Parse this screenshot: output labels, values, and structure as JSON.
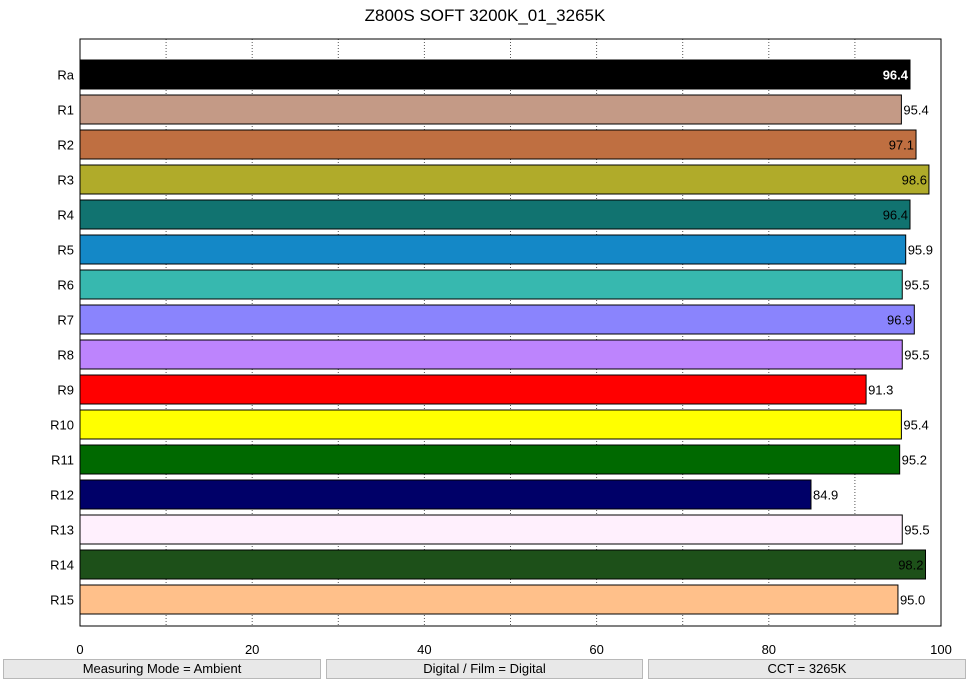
{
  "chart_data": {
    "type": "bar",
    "orientation": "horizontal",
    "title": "Z800S SOFT 3200K_01_3265K",
    "xlabel": "",
    "ylabel": "",
    "xlim": [
      0,
      100
    ],
    "x_ticks": [
      0,
      20,
      40,
      60,
      80,
      100
    ],
    "grid": "vertical dotted",
    "categories": [
      "Ra",
      "R1",
      "R2",
      "R3",
      "R4",
      "R5",
      "R6",
      "R7",
      "R8",
      "R9",
      "R10",
      "R11",
      "R12",
      "R13",
      "R14",
      "R15"
    ],
    "values": [
      96.4,
      95.4,
      97.1,
      98.6,
      96.4,
      95.9,
      95.5,
      96.9,
      95.5,
      91.3,
      95.4,
      95.2,
      84.9,
      95.5,
      98.2,
      95.0
    ],
    "value_labels": [
      "96.4",
      "95.4",
      "97.1",
      "98.6",
      "96.4",
      "95.9",
      "95.5",
      "96.9",
      "95.5",
      "91.3",
      "95.4",
      "95.2",
      "84.9",
      "95.5",
      "98.2",
      "95.0"
    ],
    "colors": [
      "#000000",
      "#c49a86",
      "#bf6f41",
      "#b0ab2a",
      "#117370",
      "#1488c7",
      "#37b8af",
      "#8a84fd",
      "#bd84fd",
      "#ff0000",
      "#ffff00",
      "#006900",
      "#000068",
      "#fff0fd",
      "#1d5019",
      "#ffc08a"
    ],
    "label_colors": [
      "#ffffff",
      "#000000",
      "#000000",
      "#000000",
      "#000000",
      "#000000",
      "#000000",
      "#000000",
      "#000000",
      "#000000",
      "#000000",
      "#000000",
      "#000000",
      "#000000",
      "#000000",
      "#000000"
    ],
    "label_inside": [
      true,
      false,
      true,
      true,
      true,
      false,
      false,
      true,
      false,
      false,
      false,
      false,
      false,
      false,
      true,
      false
    ]
  },
  "footer": {
    "measuring_mode": "Measuring Mode = Ambient",
    "digital_film": "Digital / Film = Digital",
    "cct": "CCT = 3265K"
  }
}
